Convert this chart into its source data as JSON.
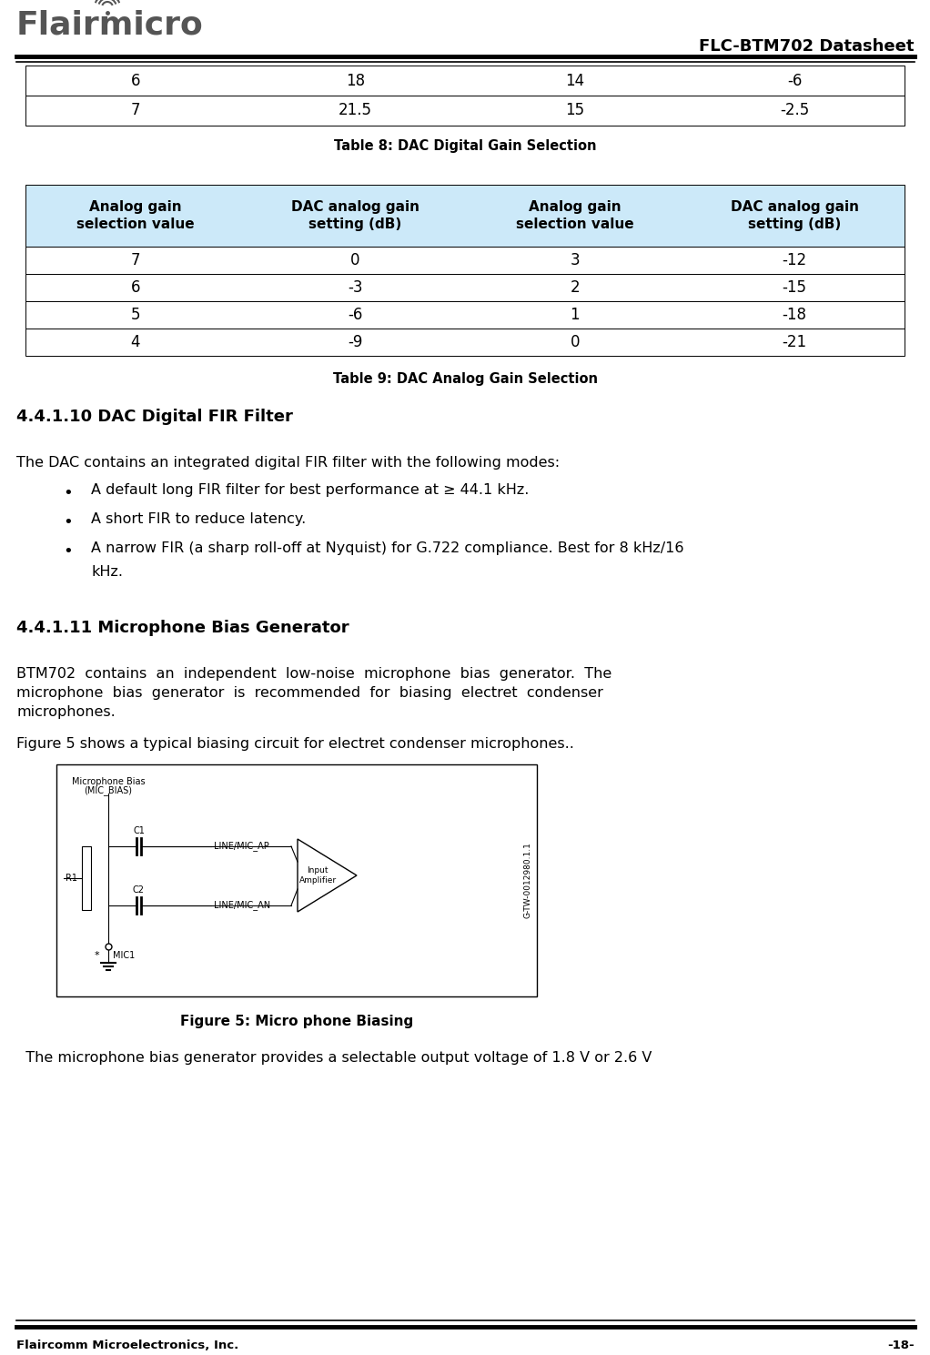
{
  "title_right": "FLC-BTM702 Datasheet",
  "logo_text": "Flairmicro",
  "logo_color": "#555555",
  "footer_left": "Flaircomm Microelectronics, Inc.",
  "footer_right": "-18-",
  "table8_caption": "Table 8: DAC Digital Gain Selection",
  "table8_data": [
    [
      "6",
      "18",
      "14",
      "-6"
    ],
    [
      "7",
      "21.5",
      "15",
      "-2.5"
    ]
  ],
  "table9_caption": "Table 9: DAC Analog Gain Selection",
  "table9_headers": [
    "Analog gain\nselection value",
    "DAC analog gain\nsetting (dB)",
    "Analog gain\nselection value",
    "DAC analog gain\nsetting (dB)"
  ],
  "table9_data": [
    [
      "7",
      "0",
      "3",
      "-12"
    ],
    [
      "6",
      "-3",
      "2",
      "-15"
    ],
    [
      "5",
      "-6",
      "1",
      "-18"
    ],
    [
      "4",
      "-9",
      "0",
      "-21"
    ]
  ],
  "table9_header_bg": "#cce9f9",
  "section_441_title": "4.4.1.10 DAC Digital FIR Filter",
  "section_441_text": "The DAC contains an integrated digital FIR filter with the following modes:",
  "section_441_bullets": [
    "A default long FIR filter for best performance at ≥ 44.1 kHz.",
    "A short FIR to reduce latency.",
    "A narrow FIR (a sharp roll-off at Nyquist) for G.722 compliance. Best for 8 kHz/16\nkHz."
  ],
  "section_442_title": "4.4.1.11 Microphone Bias Generator",
  "section_442_text1_lines": [
    "BTM702  contains  an  independent  low-noise  microphone  bias  generator.  The",
    "microphone  bias  generator  is  recommended  for  biasing  electret  condenser",
    "microphones."
  ],
  "section_442_text2": "Figure 5 shows a typical biasing circuit for electret condenser microphones..",
  "figure5_caption": "Figure 5: Micro phone Biasing",
  "last_line": "  The microphone bias generator provides a selectable output voltage of 1.8 V or 2.6 V"
}
